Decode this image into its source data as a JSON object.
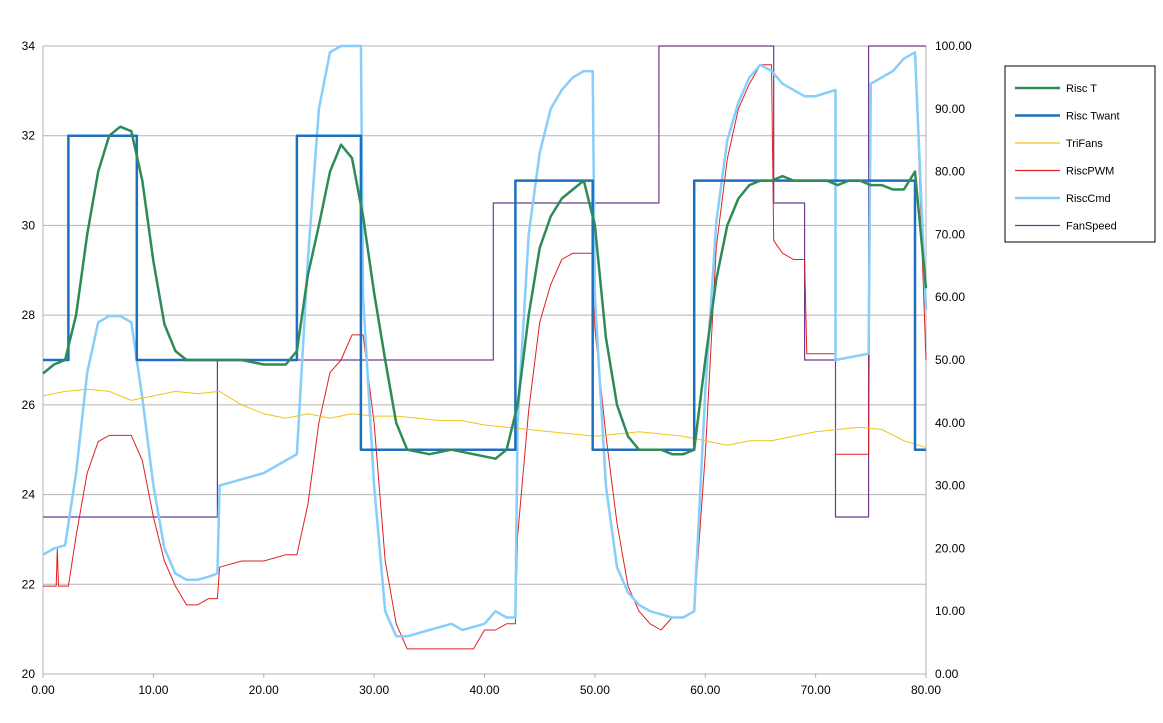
{
  "chart_data": {
    "type": "line",
    "x_ticks": [
      "0.00",
      "10.00",
      "20.00",
      "30.00",
      "40.00",
      "50.00",
      "60.00",
      "70.00",
      "80.00"
    ],
    "xlim": [
      0,
      80
    ],
    "y_left_ticks": [
      "20",
      "22",
      "24",
      "26",
      "28",
      "30",
      "32",
      "34"
    ],
    "y_left_lim": [
      20,
      34
    ],
    "y_right_ticks": [
      "0.00",
      "10.00",
      "20.00",
      "30.00",
      "40.00",
      "50.00",
      "60.00",
      "70.00",
      "80.00",
      "90.00",
      "100.00"
    ],
    "y_right_lim": [
      0,
      100
    ],
    "grid": "horizontal",
    "legend_position": "right",
    "series": [
      {
        "name": "Risc T",
        "axis": "left",
        "color": "#2e8b57",
        "points": [
          [
            0,
            26.7
          ],
          [
            1,
            26.9
          ],
          [
            2,
            27.0
          ],
          [
            3,
            28.0
          ],
          [
            4,
            29.8
          ],
          [
            5,
            31.2
          ],
          [
            6,
            32.0
          ],
          [
            7,
            32.2
          ],
          [
            8,
            32.1
          ],
          [
            9,
            31.0
          ],
          [
            10,
            29.2
          ],
          [
            11,
            27.8
          ],
          [
            12,
            27.2
          ],
          [
            13,
            27.0
          ],
          [
            14,
            27.0
          ],
          [
            15,
            27.0
          ],
          [
            16,
            27.0
          ],
          [
            18,
            27.0
          ],
          [
            20,
            26.9
          ],
          [
            22,
            26.9
          ],
          [
            23,
            27.2
          ],
          [
            24,
            28.9
          ],
          [
            25,
            30.0
          ],
          [
            26,
            31.2
          ],
          [
            27,
            31.8
          ],
          [
            28,
            31.5
          ],
          [
            29,
            30.2
          ],
          [
            30,
            28.5
          ],
          [
            31,
            27.0
          ],
          [
            32,
            25.6
          ],
          [
            33,
            25.0
          ],
          [
            35,
            24.9
          ],
          [
            37,
            25.0
          ],
          [
            39,
            24.9
          ],
          [
            41,
            24.8
          ],
          [
            42,
            25.0
          ],
          [
            43,
            26.0
          ],
          [
            44,
            28.0
          ],
          [
            45,
            29.5
          ],
          [
            46,
            30.2
          ],
          [
            47,
            30.6
          ],
          [
            48,
            30.8
          ],
          [
            49,
            31.0
          ],
          [
            50,
            30.0
          ],
          [
            51,
            27.5
          ],
          [
            52,
            26.0
          ],
          [
            53,
            25.3
          ],
          [
            54,
            25.0
          ],
          [
            55,
            25.0
          ],
          [
            56,
            25.0
          ],
          [
            57,
            24.9
          ],
          [
            58,
            24.9
          ],
          [
            59,
            25.0
          ],
          [
            60,
            27.0
          ],
          [
            61,
            28.8
          ],
          [
            62,
            30.0
          ],
          [
            63,
            30.6
          ],
          [
            64,
            30.9
          ],
          [
            65,
            31.0
          ],
          [
            66,
            31.0
          ],
          [
            67,
            31.1
          ],
          [
            68,
            31.0
          ],
          [
            69,
            31.0
          ],
          [
            70,
            31.0
          ],
          [
            71,
            31.0
          ],
          [
            72,
            30.9
          ],
          [
            73,
            31.0
          ],
          [
            74,
            31.0
          ],
          [
            75,
            30.9
          ],
          [
            76,
            30.9
          ],
          [
            77,
            30.8
          ],
          [
            78,
            30.8
          ],
          [
            79,
            31.2
          ],
          [
            80,
            28.6
          ]
        ]
      },
      {
        "name": "Risc Twant",
        "axis": "left",
        "color": "#1f6fbf",
        "points": [
          [
            0,
            27
          ],
          [
            2.3,
            27
          ],
          [
            2.3,
            32
          ],
          [
            8.5,
            32
          ],
          [
            8.5,
            27
          ],
          [
            23,
            27
          ],
          [
            23,
            32
          ],
          [
            28.8,
            32
          ],
          [
            28.8,
            25
          ],
          [
            42.8,
            25
          ],
          [
            42.8,
            31
          ],
          [
            49.8,
            31
          ],
          [
            49.8,
            25
          ],
          [
            59,
            25
          ],
          [
            59,
            31
          ],
          [
            79,
            31
          ],
          [
            79,
            25
          ],
          [
            80,
            25
          ]
        ]
      },
      {
        "name": "TriFans",
        "axis": "left",
        "color": "#f0c419",
        "points": [
          [
            0,
            26.2
          ],
          [
            2,
            26.3
          ],
          [
            4,
            26.35
          ],
          [
            6,
            26.3
          ],
          [
            8,
            26.1
          ],
          [
            10,
            26.2
          ],
          [
            12,
            26.3
          ],
          [
            14,
            26.25
          ],
          [
            16,
            26.3
          ],
          [
            18,
            26.0
          ],
          [
            20,
            25.8
          ],
          [
            22,
            25.7
          ],
          [
            24,
            25.8
          ],
          [
            26,
            25.7
          ],
          [
            28,
            25.8
          ],
          [
            30,
            25.75
          ],
          [
            32,
            25.75
          ],
          [
            34,
            25.7
          ],
          [
            36,
            25.65
          ],
          [
            38,
            25.65
          ],
          [
            40,
            25.55
          ],
          [
            42,
            25.5
          ],
          [
            44,
            25.45
          ],
          [
            46,
            25.4
          ],
          [
            48,
            25.35
          ],
          [
            50,
            25.3
          ],
          [
            52,
            25.35
          ],
          [
            54,
            25.4
          ],
          [
            56,
            25.35
          ],
          [
            58,
            25.3
          ],
          [
            60,
            25.2
          ],
          [
            62,
            25.1
          ],
          [
            64,
            25.2
          ],
          [
            66,
            25.2
          ],
          [
            68,
            25.3
          ],
          [
            70,
            25.4
          ],
          [
            72,
            25.45
          ],
          [
            74,
            25.5
          ],
          [
            76,
            25.45
          ],
          [
            78,
            25.2
          ],
          [
            80,
            25.05
          ]
        ]
      },
      {
        "name": "RiscPWM",
        "axis": "right",
        "color": "#e02020",
        "points": [
          [
            0,
            14
          ],
          [
            1.2,
            14
          ],
          [
            1.3,
            20
          ],
          [
            1.4,
            14
          ],
          [
            2.3,
            14
          ],
          [
            3,
            22
          ],
          [
            4,
            32
          ],
          [
            5,
            37
          ],
          [
            6,
            38
          ],
          [
            7,
            38
          ],
          [
            8,
            38
          ],
          [
            9,
            34
          ],
          [
            10,
            25
          ],
          [
            11,
            18
          ],
          [
            12,
            14
          ],
          [
            13,
            11
          ],
          [
            14,
            11
          ],
          [
            15,
            12
          ],
          [
            15.8,
            12
          ],
          [
            16,
            17
          ],
          [
            18,
            18
          ],
          [
            20,
            18
          ],
          [
            22,
            19
          ],
          [
            23,
            19
          ],
          [
            24,
            27
          ],
          [
            25,
            40
          ],
          [
            26,
            48
          ],
          [
            27,
            50
          ],
          [
            28,
            54
          ],
          [
            29,
            54
          ],
          [
            30,
            40
          ],
          [
            31,
            18
          ],
          [
            32,
            8
          ],
          [
            33,
            4
          ],
          [
            35,
            4
          ],
          [
            37,
            4
          ],
          [
            39,
            4
          ],
          [
            40,
            7
          ],
          [
            41,
            7
          ],
          [
            42,
            8
          ],
          [
            42.8,
            8
          ],
          [
            43,
            22
          ],
          [
            44,
            42
          ],
          [
            45,
            56
          ],
          [
            46,
            62
          ],
          [
            47,
            66
          ],
          [
            48,
            67
          ],
          [
            49,
            67
          ],
          [
            49.8,
            67
          ],
          [
            50,
            55
          ],
          [
            51,
            38
          ],
          [
            52,
            24
          ],
          [
            53,
            14
          ],
          [
            54,
            10
          ],
          [
            55,
            8
          ],
          [
            56,
            7
          ],
          [
            57,
            9
          ],
          [
            58,
            9
          ],
          [
            59,
            10
          ],
          [
            60,
            35
          ],
          [
            61,
            68
          ],
          [
            62,
            82
          ],
          [
            63,
            90
          ],
          [
            64,
            94
          ],
          [
            65,
            97
          ],
          [
            66,
            97
          ],
          [
            66.2,
            69
          ],
          [
            67,
            67
          ],
          [
            68,
            66
          ],
          [
            69,
            66
          ],
          [
            69.2,
            51
          ],
          [
            71,
            51
          ],
          [
            71.8,
            51
          ],
          [
            71.8,
            35
          ],
          [
            74.8,
            35
          ],
          [
            75,
            94
          ],
          [
            76,
            95
          ],
          [
            77,
            96
          ],
          [
            78,
            98
          ],
          [
            79,
            99
          ],
          [
            80,
            50
          ]
        ]
      },
      {
        "name": "RiscCmd",
        "axis": "right",
        "color": "#87cefa",
        "points": [
          [
            0,
            19
          ],
          [
            1,
            20
          ],
          [
            2,
            20.5
          ],
          [
            3,
            32
          ],
          [
            4,
            48
          ],
          [
            5,
            56
          ],
          [
            6,
            57
          ],
          [
            7,
            57
          ],
          [
            8,
            56
          ],
          [
            9,
            44
          ],
          [
            10,
            30
          ],
          [
            11,
            20
          ],
          [
            12,
            16
          ],
          [
            13,
            15
          ],
          [
            14,
            15
          ],
          [
            15,
            15.5
          ],
          [
            15.8,
            16
          ],
          [
            16,
            30
          ],
          [
            18,
            31
          ],
          [
            20,
            32
          ],
          [
            22,
            34
          ],
          [
            23,
            35
          ],
          [
            24,
            66
          ],
          [
            25,
            90
          ],
          [
            26,
            99
          ],
          [
            27,
            100
          ],
          [
            28,
            100
          ],
          [
            28.8,
            100
          ],
          [
            29,
            60
          ],
          [
            30,
            30
          ],
          [
            31,
            10
          ],
          [
            32,
            6
          ],
          [
            33,
            6
          ],
          [
            35,
            7
          ],
          [
            37,
            8
          ],
          [
            38,
            7
          ],
          [
            40,
            8
          ],
          [
            41,
            10
          ],
          [
            42,
            9
          ],
          [
            42.8,
            9
          ],
          [
            43,
            40
          ],
          [
            44,
            70
          ],
          [
            45,
            83
          ],
          [
            46,
            90
          ],
          [
            47,
            93
          ],
          [
            48,
            95
          ],
          [
            49,
            96
          ],
          [
            49.8,
            96
          ],
          [
            50,
            60
          ],
          [
            51,
            30
          ],
          [
            52,
            17
          ],
          [
            53,
            13
          ],
          [
            54,
            11
          ],
          [
            55,
            10
          ],
          [
            56,
            9.5
          ],
          [
            57,
            9
          ],
          [
            58,
            9
          ],
          [
            59,
            10
          ],
          [
            60,
            45
          ],
          [
            61,
            72
          ],
          [
            62,
            85
          ],
          [
            63,
            91
          ],
          [
            64,
            95
          ],
          [
            65,
            97
          ],
          [
            66,
            96
          ],
          [
            67,
            94
          ],
          [
            68,
            93
          ],
          [
            69,
            92
          ],
          [
            70,
            92
          ],
          [
            71.8,
            93
          ],
          [
            71.8,
            50
          ],
          [
            74.8,
            51
          ],
          [
            75,
            94
          ],
          [
            76,
            95
          ],
          [
            77,
            96
          ],
          [
            78,
            98
          ],
          [
            79,
            99
          ],
          [
            80,
            58
          ]
        ]
      },
      {
        "name": "FanSpeed",
        "axis": "right",
        "color": "#6b3a8c",
        "points": [
          [
            0,
            25
          ],
          [
            15.8,
            25
          ],
          [
            15.8,
            50
          ],
          [
            40.8,
            50
          ],
          [
            40.8,
            75
          ],
          [
            55.8,
            75
          ],
          [
            55.8,
            100
          ],
          [
            66.2,
            100
          ],
          [
            66.2,
            75
          ],
          [
            69,
            75
          ],
          [
            69,
            50
          ],
          [
            71.8,
            50
          ],
          [
            71.8,
            25
          ],
          [
            74.8,
            25
          ],
          [
            74.8,
            100
          ],
          [
            80,
            100
          ]
        ]
      }
    ]
  }
}
